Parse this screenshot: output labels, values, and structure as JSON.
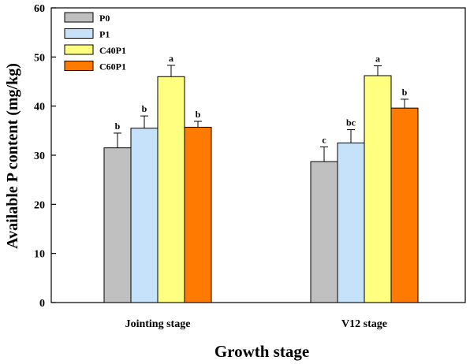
{
  "chart_data": {
    "type": "bar",
    "title": "",
    "xlabel": "Growth stage",
    "ylabel": "Available P content (mg/kg)",
    "categories": [
      "Jointing stage",
      "V12 stage"
    ],
    "ylim": [
      0,
      60
    ],
    "yticks": [
      0,
      10,
      20,
      30,
      40,
      50,
      60
    ],
    "legend_position": "top-left",
    "grid": false,
    "series": [
      {
        "name": "P0",
        "color": "#c0c0c0",
        "values": [
          31.5,
          28.7
        ],
        "errors": [
          3.0,
          3.0
        ],
        "labels": [
          "b",
          "c"
        ]
      },
      {
        "name": "P1",
        "color": "#c6e2fa",
        "values": [
          35.5,
          32.5
        ],
        "errors": [
          2.5,
          2.7
        ],
        "labels": [
          "b",
          "bc"
        ]
      },
      {
        "name": "C40P1",
        "color": "#ffff80",
        "values": [
          46.0,
          46.2
        ],
        "errors": [
          2.3,
          2.0
        ],
        "labels": [
          "a",
          "a"
        ]
      },
      {
        "name": "C60P1",
        "color": "#ff7a00",
        "values": [
          35.7,
          39.6
        ],
        "errors": [
          1.2,
          1.8
        ],
        "labels": [
          "b",
          "b"
        ]
      }
    ]
  }
}
